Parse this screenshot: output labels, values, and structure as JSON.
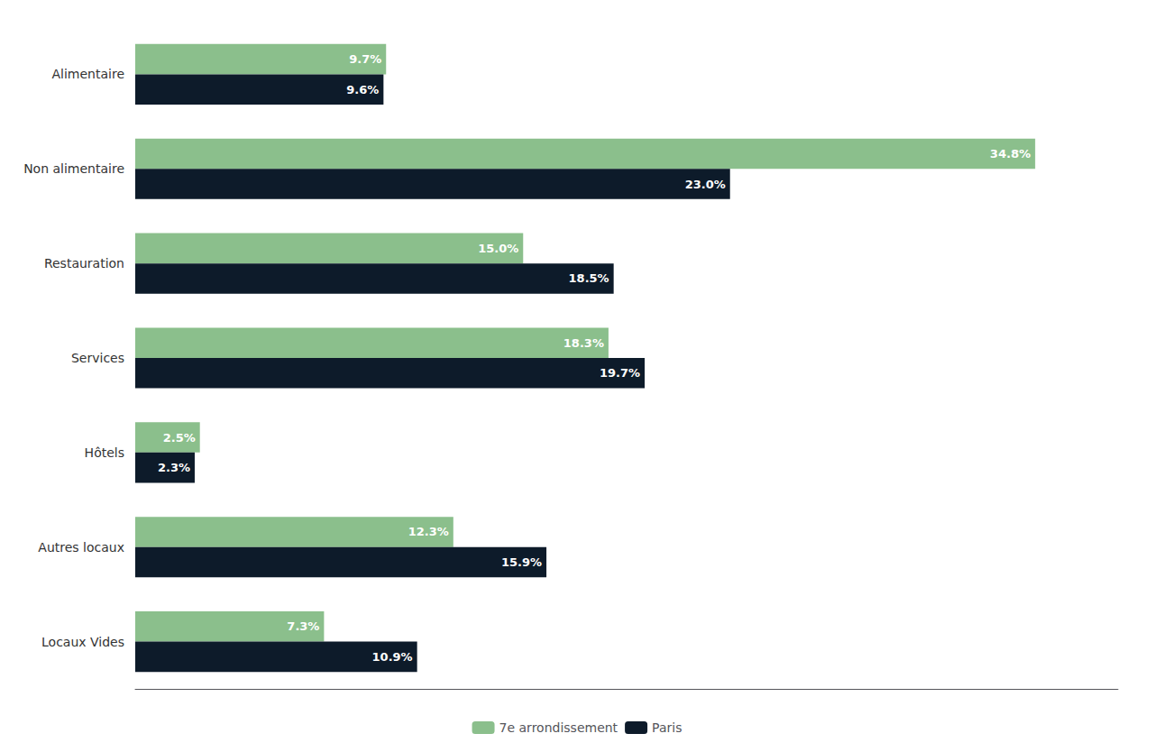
{
  "chart_data": {
    "type": "bar",
    "orientation": "horizontal",
    "categories": [
      "Alimentaire",
      "Non alimentaire",
      "Restauration",
      "Services",
      "Hôtels",
      "Autres locaux",
      "Locaux Vides"
    ],
    "series": [
      {
        "name": "7e arrondissement",
        "color": "#8BBF8C",
        "values": [
          9.7,
          34.8,
          15.0,
          18.3,
          2.5,
          12.3,
          7.3
        ],
        "value_labels": [
          "9.7%",
          "34.8%",
          "15.0%",
          "18.3%",
          "2.5%",
          "12.3%",
          "7.3%"
        ]
      },
      {
        "name": "Paris",
        "color": "#0D1B2A",
        "values": [
          9.6,
          23.0,
          18.5,
          19.7,
          2.3,
          15.9,
          10.9
        ],
        "value_labels": [
          "9.6%",
          "23.0%",
          "18.5%",
          "19.7%",
          "2.3%",
          "15.9%",
          "10.9%"
        ]
      }
    ],
    "xlim": [
      0,
      38
    ],
    "tick_labels": "y",
    "data_labels": true,
    "grid": false,
    "legend": "bottom"
  }
}
